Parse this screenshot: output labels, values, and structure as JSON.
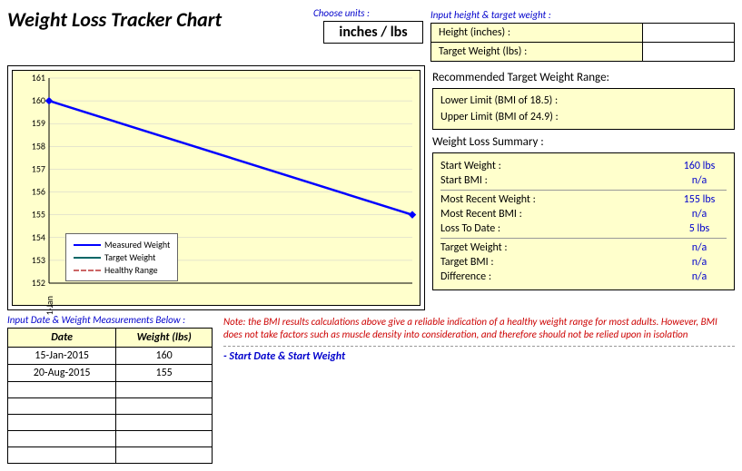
{
  "title": "Weight Loss Tracker Chart",
  "units": {
    "label": "Choose units :",
    "value": "inches / lbs"
  },
  "inputs": {
    "section_label": "Input height & target weight :",
    "height_label": "Height (inches) :",
    "target_label": "Target Weight (lbs) :",
    "height_value": "",
    "target_value": ""
  },
  "range": {
    "title": "Recommended Target Weight Range:",
    "lower_label": "Lower Limit (BMI of 18.5) :",
    "upper_label": "Upper Limit (BMI of 24.9) :",
    "lower_value": "",
    "upper_value": ""
  },
  "summary": {
    "title": "Weight Loss Summary :",
    "rows": [
      {
        "label": "Start Weight :",
        "value": "160 lbs"
      },
      {
        "label": "Start BMI :",
        "value": "n/a"
      },
      {
        "label": "Most Recent Weight :",
        "value": "155 lbs"
      },
      {
        "label": "Most Recent BMI :",
        "value": "n/a"
      },
      {
        "label": "Loss To Date :",
        "value": "5 lbs"
      },
      {
        "label": "Target Weight :",
        "value": "n/a"
      },
      {
        "label": "Target BMI :",
        "value": "n/a"
      },
      {
        "label": "Difference :",
        "value": "n/a"
      }
    ]
  },
  "chart": {
    "type": "line",
    "ylim": [
      152,
      161
    ],
    "yticks": [
      152,
      153,
      154,
      155,
      156,
      157,
      158,
      159,
      160,
      161
    ],
    "xticks": [
      "1-Jan"
    ],
    "background_color": "#ffffcc",
    "grid_color": "#cccccc",
    "axis_color": "#000000",
    "tick_fontsize": 10,
    "series": [
      {
        "name": "Measured Weight",
        "color": "#0000ff",
        "width": 2.5,
        "style": "solid",
        "marker": "diamond",
        "points": [
          [
            0,
            160
          ],
          [
            1,
            155
          ]
        ]
      },
      {
        "name": "Target Weight",
        "color": "#006666",
        "width": 2,
        "style": "solid",
        "marker": "none",
        "points": []
      },
      {
        "name": "Healthy Range",
        "color": "#cc6666",
        "width": 1,
        "style": "dashed",
        "marker": "none",
        "points": []
      }
    ],
    "legend": {
      "position": "inside-bottom-left",
      "border_color": "#666666",
      "bg": "#ffffff",
      "fontsize": 10
    }
  },
  "data_entry": {
    "section_label": "Input Date & Weight Measurements Below :",
    "columns": [
      "Date",
      "Weight (lbs)"
    ],
    "rows": [
      [
        "15-Jan-2015",
        "160"
      ],
      [
        "20-Aug-2015",
        "155"
      ],
      [
        "",
        ""
      ],
      [
        "",
        ""
      ],
      [
        "",
        ""
      ],
      [
        "",
        ""
      ],
      [
        "",
        ""
      ]
    ]
  },
  "note": "Note: the BMI results calculations above give a reliable indication of a healthy weight range for most adults. However, BMI does not take factors such as muscle density into consideration, and therefore should not be relied upon in isolation",
  "start_hint": "- Start Date & Start Weight"
}
